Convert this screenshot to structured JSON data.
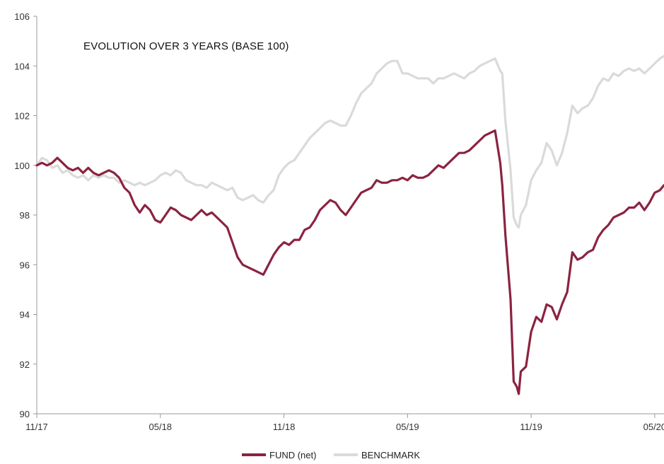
{
  "chart_data": {
    "type": "line",
    "title": "EVOLUTION OVER 3 YEARS (BASE 100)",
    "xlabel": "",
    "ylabel": "",
    "ylim": [
      90,
      106
    ],
    "y_ticks": [
      90,
      92,
      94,
      96,
      98,
      100,
      102,
      104,
      106
    ],
    "x_ticks": [
      "11/17",
      "05/18",
      "11/18",
      "05/19",
      "11/19",
      "05/20"
    ],
    "grid": false,
    "legend_position": "bottom-center",
    "x_axis_note": "approximate weekly points; x = months since 11/17",
    "series": [
      {
        "name": "FUND (net)",
        "color": "#8B2340",
        "points": [
          [
            0,
            100.0
          ],
          [
            0.25,
            100.1
          ],
          [
            0.5,
            100.0
          ],
          [
            0.75,
            100.1
          ],
          [
            1.0,
            100.3
          ],
          [
            1.25,
            100.1
          ],
          [
            1.5,
            99.9
          ],
          [
            1.75,
            99.8
          ],
          [
            2.0,
            99.9
          ],
          [
            2.25,
            99.7
          ],
          [
            2.5,
            99.9
          ],
          [
            2.75,
            99.7
          ],
          [
            3.0,
            99.6
          ],
          [
            3.25,
            99.7
          ],
          [
            3.5,
            99.8
          ],
          [
            3.75,
            99.7
          ],
          [
            4.0,
            99.5
          ],
          [
            4.25,
            99.1
          ],
          [
            4.5,
            98.9
          ],
          [
            4.75,
            98.4
          ],
          [
            5.0,
            98.1
          ],
          [
            5.25,
            98.4
          ],
          [
            5.5,
            98.2
          ],
          [
            5.75,
            97.8
          ],
          [
            6.0,
            97.7
          ],
          [
            6.25,
            98.0
          ],
          [
            6.5,
            98.3
          ],
          [
            6.75,
            98.2
          ],
          [
            7.0,
            98.0
          ],
          [
            7.25,
            97.9
          ],
          [
            7.5,
            97.8
          ],
          [
            7.75,
            98.0
          ],
          [
            8.0,
            98.2
          ],
          [
            8.25,
            98.0
          ],
          [
            8.5,
            98.1
          ],
          [
            8.75,
            97.9
          ],
          [
            9.0,
            97.7
          ],
          [
            9.25,
            97.5
          ],
          [
            9.5,
            96.9
          ],
          [
            9.75,
            96.3
          ],
          [
            10.0,
            96.0
          ],
          [
            10.25,
            95.9
          ],
          [
            10.5,
            95.8
          ],
          [
            10.75,
            95.7
          ],
          [
            11.0,
            95.6
          ],
          [
            11.25,
            96.0
          ],
          [
            11.5,
            96.4
          ],
          [
            11.75,
            96.7
          ],
          [
            12.0,
            96.9
          ],
          [
            12.25,
            96.8
          ],
          [
            12.5,
            97.0
          ],
          [
            12.75,
            97.0
          ],
          [
            13.0,
            97.4
          ],
          [
            13.25,
            97.5
          ],
          [
            13.5,
            97.8
          ],
          [
            13.75,
            98.2
          ],
          [
            14.0,
            98.4
          ],
          [
            14.25,
            98.6
          ],
          [
            14.5,
            98.5
          ],
          [
            14.75,
            98.2
          ],
          [
            15.0,
            98.0
          ],
          [
            15.25,
            98.3
          ],
          [
            15.5,
            98.6
          ],
          [
            15.75,
            98.9
          ],
          [
            16.0,
            99.0
          ],
          [
            16.25,
            99.1
          ],
          [
            16.5,
            99.4
          ],
          [
            16.75,
            99.3
          ],
          [
            17.0,
            99.3
          ],
          [
            17.25,
            99.4
          ],
          [
            17.5,
            99.4
          ],
          [
            17.75,
            99.5
          ],
          [
            18.0,
            99.4
          ],
          [
            18.25,
            99.6
          ],
          [
            18.5,
            99.5
          ],
          [
            18.75,
            99.5
          ],
          [
            19.0,
            99.6
          ],
          [
            19.25,
            99.8
          ],
          [
            19.5,
            100.0
          ],
          [
            19.75,
            99.9
          ],
          [
            20.0,
            100.1
          ],
          [
            20.25,
            100.3
          ],
          [
            20.5,
            100.5
          ],
          [
            20.75,
            100.5
          ],
          [
            21.0,
            100.6
          ],
          [
            21.25,
            100.8
          ],
          [
            21.5,
            101.0
          ],
          [
            21.75,
            101.2
          ],
          [
            22.0,
            101.3
          ],
          [
            22.25,
            101.4
          ],
          [
            22.5,
            100.1
          ],
          [
            22.6,
            99.2
          ],
          [
            22.75,
            97.2
          ],
          [
            23.0,
            94.6
          ],
          [
            23.15,
            91.3
          ],
          [
            23.3,
            91.1
          ],
          [
            23.4,
            90.8
          ],
          [
            23.5,
            91.7
          ],
          [
            23.75,
            91.9
          ],
          [
            24.0,
            93.3
          ],
          [
            24.25,
            93.9
          ],
          [
            24.5,
            93.7
          ],
          [
            24.75,
            94.4
          ],
          [
            25.0,
            94.3
          ],
          [
            25.25,
            93.8
          ],
          [
            25.5,
            94.4
          ],
          [
            25.75,
            94.9
          ],
          [
            26.0,
            96.5
          ],
          [
            26.25,
            96.2
          ],
          [
            26.5,
            96.3
          ],
          [
            26.75,
            96.5
          ],
          [
            27.0,
            96.6
          ],
          [
            27.25,
            97.1
          ],
          [
            27.5,
            97.4
          ],
          [
            27.75,
            97.6
          ],
          [
            28.0,
            97.9
          ],
          [
            28.25,
            98.0
          ],
          [
            28.5,
            98.1
          ],
          [
            28.75,
            98.3
          ],
          [
            29.0,
            98.3
          ],
          [
            29.25,
            98.5
          ],
          [
            29.5,
            98.2
          ],
          [
            29.75,
            98.5
          ],
          [
            30.0,
            98.9
          ],
          [
            30.25,
            99.0
          ],
          [
            30.45,
            99.2
          ]
        ]
      },
      {
        "name": "BENCHMARK",
        "color": "#DADADA",
        "points": [
          [
            0,
            100.0
          ],
          [
            0.25,
            100.3
          ],
          [
            0.5,
            100.2
          ],
          [
            0.75,
            99.9
          ],
          [
            1.0,
            100.0
          ],
          [
            1.25,
            99.7
          ],
          [
            1.5,
            99.8
          ],
          [
            1.75,
            99.6
          ],
          [
            2.0,
            99.5
          ],
          [
            2.25,
            99.6
          ],
          [
            2.5,
            99.4
          ],
          [
            2.75,
            99.6
          ],
          [
            3.0,
            99.5
          ],
          [
            3.25,
            99.6
          ],
          [
            3.5,
            99.5
          ],
          [
            3.75,
            99.5
          ],
          [
            4.0,
            99.3
          ],
          [
            4.25,
            99.4
          ],
          [
            4.5,
            99.3
          ],
          [
            4.75,
            99.2
          ],
          [
            5.0,
            99.3
          ],
          [
            5.25,
            99.2
          ],
          [
            5.5,
            99.3
          ],
          [
            5.75,
            99.4
          ],
          [
            6.0,
            99.6
          ],
          [
            6.25,
            99.7
          ],
          [
            6.5,
            99.6
          ],
          [
            6.75,
            99.8
          ],
          [
            7.0,
            99.7
          ],
          [
            7.25,
            99.4
          ],
          [
            7.5,
            99.3
          ],
          [
            7.75,
            99.2
          ],
          [
            8.0,
            99.2
          ],
          [
            8.25,
            99.1
          ],
          [
            8.5,
            99.3
          ],
          [
            8.75,
            99.2
          ],
          [
            9.0,
            99.1
          ],
          [
            9.25,
            99.0
          ],
          [
            9.5,
            99.1
          ],
          [
            9.75,
            98.7
          ],
          [
            10.0,
            98.6
          ],
          [
            10.25,
            98.7
          ],
          [
            10.5,
            98.8
          ],
          [
            10.75,
            98.6
          ],
          [
            11.0,
            98.5
          ],
          [
            11.25,
            98.8
          ],
          [
            11.5,
            99.0
          ],
          [
            11.75,
            99.6
          ],
          [
            12.0,
            99.9
          ],
          [
            12.25,
            100.1
          ],
          [
            12.5,
            100.2
          ],
          [
            12.75,
            100.5
          ],
          [
            13.0,
            100.8
          ],
          [
            13.25,
            101.1
          ],
          [
            13.5,
            101.3
          ],
          [
            13.75,
            101.5
          ],
          [
            14.0,
            101.7
          ],
          [
            14.25,
            101.8
          ],
          [
            14.5,
            101.7
          ],
          [
            14.75,
            101.6
          ],
          [
            15.0,
            101.6
          ],
          [
            15.25,
            102.0
          ],
          [
            15.5,
            102.5
          ],
          [
            15.75,
            102.9
          ],
          [
            16.0,
            103.1
          ],
          [
            16.25,
            103.3
          ],
          [
            16.5,
            103.7
          ],
          [
            16.75,
            103.9
          ],
          [
            17.0,
            104.1
          ],
          [
            17.25,
            104.2
          ],
          [
            17.5,
            104.2
          ],
          [
            17.75,
            103.7
          ],
          [
            18.0,
            103.7
          ],
          [
            18.25,
            103.6
          ],
          [
            18.5,
            103.5
          ],
          [
            18.75,
            103.5
          ],
          [
            19.0,
            103.5
          ],
          [
            19.25,
            103.3
          ],
          [
            19.5,
            103.5
          ],
          [
            19.75,
            103.5
          ],
          [
            20.0,
            103.6
          ],
          [
            20.25,
            103.7
          ],
          [
            20.5,
            103.6
          ],
          [
            20.75,
            103.5
          ],
          [
            21.0,
            103.7
          ],
          [
            21.25,
            103.8
          ],
          [
            21.5,
            104.0
          ],
          [
            21.75,
            104.1
          ],
          [
            22.0,
            104.2
          ],
          [
            22.25,
            104.3
          ],
          [
            22.5,
            103.8
          ],
          [
            22.6,
            103.7
          ],
          [
            22.75,
            101.8
          ],
          [
            23.0,
            99.8
          ],
          [
            23.15,
            97.9
          ],
          [
            23.3,
            97.6
          ],
          [
            23.4,
            97.5
          ],
          [
            23.5,
            98.0
          ],
          [
            23.75,
            98.4
          ],
          [
            24.0,
            99.4
          ],
          [
            24.25,
            99.8
          ],
          [
            24.5,
            100.1
          ],
          [
            24.75,
            100.9
          ],
          [
            25.0,
            100.6
          ],
          [
            25.25,
            100.0
          ],
          [
            25.5,
            100.5
          ],
          [
            25.75,
            101.3
          ],
          [
            26.0,
            102.4
          ],
          [
            26.25,
            102.1
          ],
          [
            26.5,
            102.3
          ],
          [
            26.75,
            102.4
          ],
          [
            27.0,
            102.7
          ],
          [
            27.25,
            103.2
          ],
          [
            27.5,
            103.5
          ],
          [
            27.75,
            103.4
          ],
          [
            28.0,
            103.7
          ],
          [
            28.25,
            103.6
          ],
          [
            28.5,
            103.8
          ],
          [
            28.75,
            103.9
          ],
          [
            29.0,
            103.8
          ],
          [
            29.25,
            103.9
          ],
          [
            29.5,
            103.7
          ],
          [
            29.75,
            103.9
          ],
          [
            30.0,
            104.1
          ],
          [
            30.25,
            104.3
          ],
          [
            30.45,
            104.4
          ]
        ]
      }
    ]
  },
  "legend": {
    "fund_label": "FUND (net)",
    "benchmark_label": "BENCHMARK"
  }
}
